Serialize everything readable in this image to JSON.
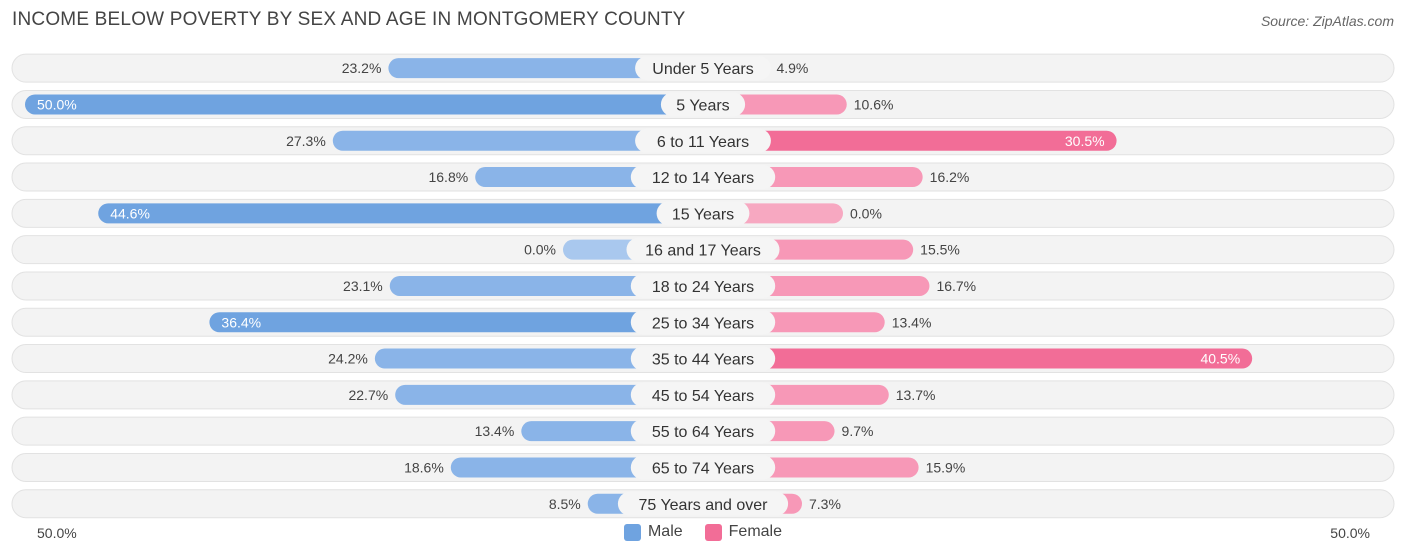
{
  "title": "INCOME BELOW POVERTY BY SEX AND AGE IN MONTGOMERY COUNTY",
  "source": "Source: ZipAtlas.com",
  "colors": {
    "male": "#6fa3e0",
    "male_light": "#a9c8ee",
    "female": "#f26d97",
    "female_light": "#f7a8c1"
  },
  "chart_data": {
    "type": "bar",
    "orientation": "horizontal-diverging",
    "title": "INCOME BELOW POVERTY BY SEX AND AGE IN MONTGOMERY COUNTY",
    "xlim": [
      -50,
      50
    ],
    "axis_left_label": "50.0%",
    "axis_right_label": "50.0%",
    "categories": [
      "Under 5 Years",
      "5 Years",
      "6 to 11 Years",
      "12 to 14 Years",
      "15 Years",
      "16 and 17 Years",
      "18 to 24 Years",
      "25 to 34 Years",
      "35 to 44 Years",
      "45 to 54 Years",
      "55 to 64 Years",
      "65 to 74 Years",
      "75 Years and over"
    ],
    "series": [
      {
        "name": "Male",
        "values": [
          23.2,
          50.0,
          27.3,
          16.8,
          44.6,
          0.0,
          23.1,
          36.4,
          24.2,
          22.7,
          13.4,
          18.6,
          8.5
        ],
        "labels": [
          "23.2%",
          "50.0%",
          "27.3%",
          "16.8%",
          "44.6%",
          "0.0%",
          "23.1%",
          "36.4%",
          "24.2%",
          "22.7%",
          "13.4%",
          "18.6%",
          "8.5%"
        ]
      },
      {
        "name": "Female",
        "values": [
          4.9,
          10.6,
          30.5,
          16.2,
          0.0,
          15.5,
          16.7,
          13.4,
          40.5,
          13.7,
          9.7,
          15.9,
          7.3
        ],
        "labels": [
          "4.9%",
          "10.6%",
          "30.5%",
          "16.2%",
          "0.0%",
          "15.5%",
          "16.7%",
          "13.4%",
          "40.5%",
          "13.7%",
          "9.7%",
          "15.9%",
          "7.3%"
        ]
      }
    ],
    "legend": [
      "Male",
      "Female"
    ]
  }
}
